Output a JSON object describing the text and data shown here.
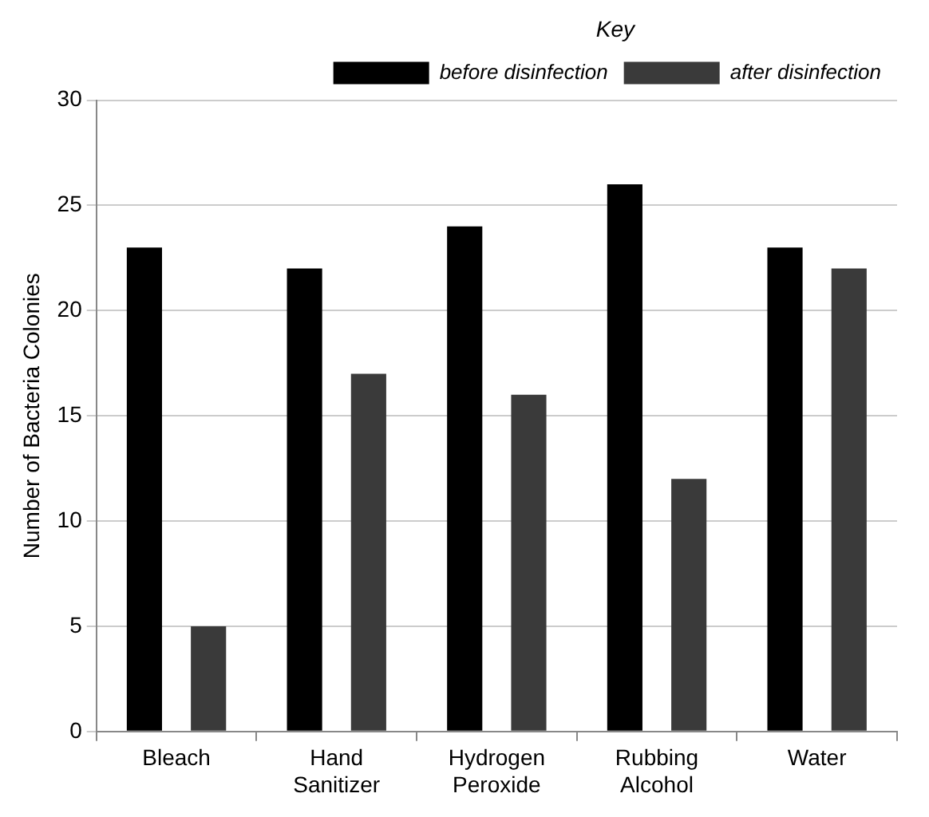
{
  "chart_data": {
    "type": "bar",
    "ylabel": "Number of Bacteria Colonies",
    "legend_title": "Key",
    "categories": [
      "Bleach",
      "Hand Sanitizer",
      "Hydrogen Peroxide",
      "Rubbing Alcohol",
      "Water"
    ],
    "series": [
      {
        "name": "before disinfection",
        "color": "#000000",
        "values": [
          23,
          22,
          24,
          26,
          23
        ]
      },
      {
        "name": "after disinfection",
        "color": "#3a3a3a",
        "values": [
          5,
          17,
          16,
          12,
          22
        ]
      }
    ],
    "ylim": [
      0,
      30
    ],
    "yticks": [
      0,
      5,
      10,
      15,
      20,
      25,
      30
    ],
    "grid": "y",
    "legend": "top right"
  }
}
